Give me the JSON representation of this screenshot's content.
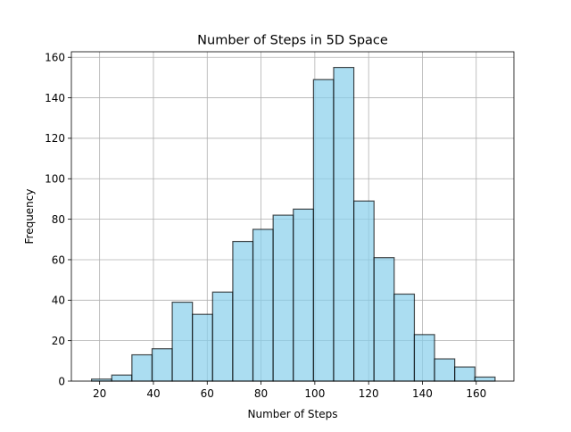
{
  "chart_data": {
    "type": "bar",
    "title": "Number of Steps in 5D Space",
    "xlabel": "Number of Steps",
    "ylabel": "Frequency",
    "xlim": [
      9.5,
      174.0
    ],
    "ylim": [
      0,
      162.75
    ],
    "xticks": [
      20,
      40,
      60,
      80,
      100,
      120,
      140,
      160
    ],
    "yticks": [
      0,
      20,
      40,
      60,
      80,
      100,
      120,
      140,
      160
    ],
    "grid": true,
    "bin_edges": [
      17.0,
      24.5,
      32.0,
      39.5,
      47.0,
      54.5,
      62.0,
      69.5,
      77.0,
      84.5,
      92.0,
      99.5,
      107.0,
      114.5,
      122.0,
      129.5,
      137.0,
      144.5,
      152.0,
      159.5,
      167.0
    ],
    "values": [
      1,
      3,
      13,
      16,
      39,
      33,
      44,
      69,
      75,
      82,
      85,
      149,
      155,
      89,
      61,
      43,
      23,
      11,
      7,
      2
    ],
    "colors": {
      "bar_fill": "#87CEEB",
      "bar_opacity": 0.7,
      "bar_edge": "#000000",
      "grid": "#b0b0b0"
    }
  }
}
